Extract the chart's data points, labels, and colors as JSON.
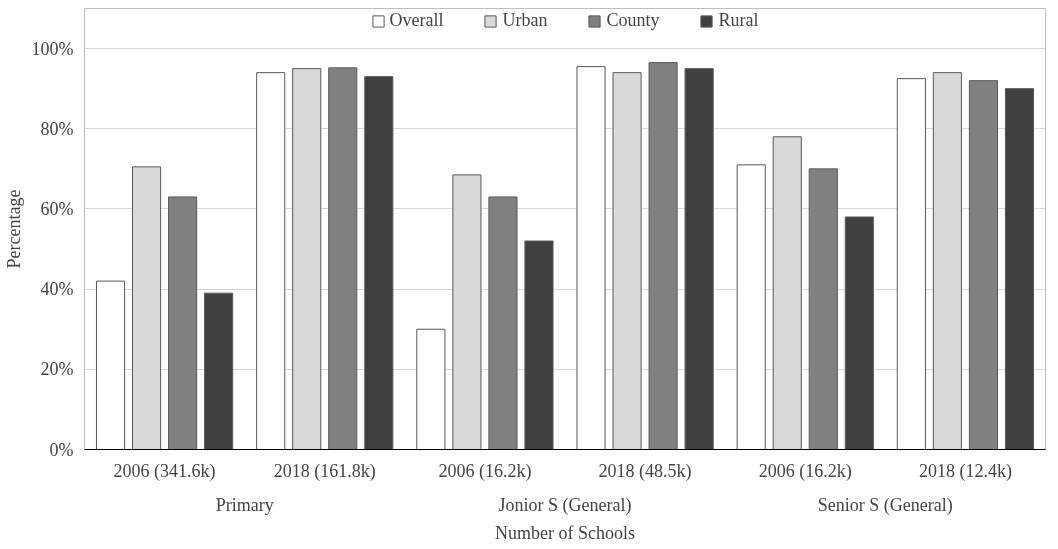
{
  "chart_data": {
    "type": "bar",
    "xlabel": "Number of Schools",
    "ylabel": "Percentage",
    "categories": [
      "2006 (341.6k)",
      "2018 (161.8k)",
      "2006 (16.2k)",
      "2018 (48.5k)",
      "2006 (16.2k)",
      "2018 (12.4k)"
    ],
    "annotations": [
      "Primary",
      "Jonior S (General)",
      "Senior S (General)"
    ],
    "series": [
      {
        "name": "Overall",
        "color": "#ffffff",
        "values": [
          42,
          94,
          30,
          95.5,
          71,
          92.5
        ]
      },
      {
        "name": "Urban",
        "color": "#d9d9d9",
        "values": [
          70.5,
          95,
          68.5,
          94,
          78,
          94
        ]
      },
      {
        "name": "County",
        "color": "#808080",
        "values": [
          63,
          95.2,
          63,
          96.5,
          70,
          92
        ]
      },
      {
        "name": "Rural",
        "color": "#404040",
        "values": [
          39,
          93,
          52,
          95,
          58,
          90
        ]
      }
    ],
    "ylim": [
      0,
      110
    ],
    "yticks": [
      {
        "value": 0,
        "label": "0%"
      },
      {
        "value": 20,
        "label": "20%"
      },
      {
        "value": 40,
        "label": "40%"
      },
      {
        "value": 60,
        "label": "60%"
      },
      {
        "value": 80,
        "label": "80%"
      },
      {
        "value": 100,
        "label": "100%"
      }
    ],
    "grid": "y",
    "legend": "top"
  }
}
